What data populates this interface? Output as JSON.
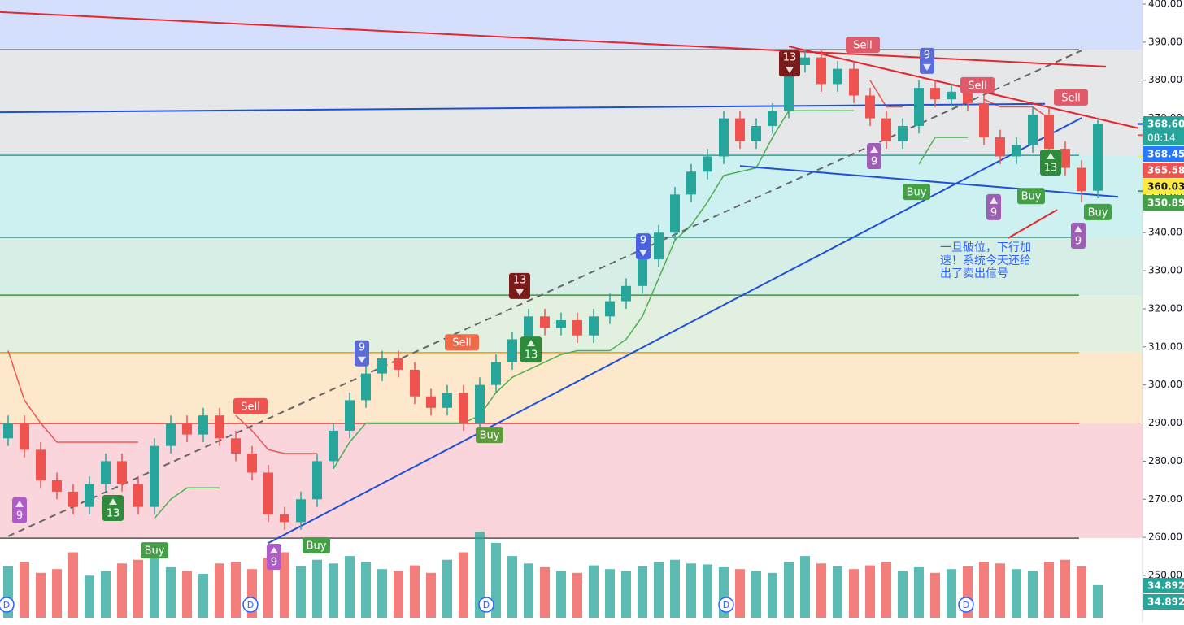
{
  "chart_data": {
    "type": "candlestick",
    "ylim": [
      237.84,
      401.07
    ],
    "yticks": [
      {
        "value": 250,
        "label": "250.00"
      },
      {
        "value": 260,
        "label": "260.00"
      },
      {
        "value": 270,
        "label": "270.00"
      },
      {
        "value": 280,
        "label": "280.00"
      },
      {
        "value": 290,
        "label": "290.00"
      },
      {
        "value": 300,
        "label": "300.00"
      },
      {
        "value": 310,
        "label": "310.00"
      },
      {
        "value": 320,
        "label": "320.00"
      },
      {
        "value": 330,
        "label": "330.00"
      },
      {
        "value": 340,
        "label": "340.00"
      },
      {
        "value": 350,
        "label": "350.00"
      },
      {
        "value": 360,
        "label": "360.00"
      },
      {
        "value": 370,
        "label": "370.00"
      },
      {
        "value": 380,
        "label": "380.00"
      },
      {
        "value": 390,
        "label": "390.00"
      },
      {
        "value": 400,
        "label": "400.00"
      }
    ],
    "up_color": "#26a69a",
    "down_color": "#ef5350",
    "open": [
      286,
      290,
      283,
      275,
      272,
      268,
      274,
      280,
      274,
      268,
      284,
      290,
      287,
      292,
      286,
      282,
      277,
      266,
      264,
      270,
      280,
      288,
      296,
      303,
      307,
      304,
      297,
      294,
      298,
      290,
      300,
      306,
      312,
      318,
      315,
      317,
      313,
      318,
      322,
      326,
      333,
      340,
      350,
      356,
      360,
      370,
      364,
      368,
      372,
      384,
      386,
      379,
      383,
      376,
      370,
      364,
      368,
      378,
      375,
      377,
      374,
      365,
      360,
      363,
      371,
      362,
      357,
      351
    ],
    "high": [
      292,
      292,
      285,
      277,
      274,
      276,
      282,
      282,
      276,
      286,
      292,
      292,
      294,
      294,
      288,
      284,
      279,
      268,
      272,
      282,
      290,
      298,
      305,
      309,
      309,
      306,
      299,
      300,
      300,
      302,
      308,
      314,
      320,
      320,
      319,
      319,
      320,
      324,
      328,
      335,
      342,
      352,
      358,
      362,
      372,
      372,
      370,
      374,
      386,
      388,
      388,
      385,
      385,
      378,
      372,
      370,
      380,
      380,
      379,
      379,
      376,
      367,
      365,
      373,
      373,
      364,
      359,
      370
    ],
    "low": [
      284,
      281,
      273,
      270,
      266,
      266,
      272,
      272,
      266,
      266,
      282,
      285,
      285,
      284,
      280,
      275,
      264,
      262,
      262,
      268,
      278,
      286,
      294,
      301,
      302,
      295,
      292,
      292,
      288,
      288,
      298,
      304,
      310,
      313,
      313,
      311,
      311,
      316,
      320,
      324,
      331,
      338,
      348,
      354,
      358,
      362,
      362,
      366,
      370,
      382,
      377,
      377,
      374,
      368,
      362,
      362,
      366,
      373,
      373,
      372,
      363,
      358,
      358,
      361,
      360,
      355,
      348,
      349
    ],
    "close": [
      290,
      283,
      275,
      272,
      268,
      274,
      280,
      274,
      268,
      284,
      290,
      287,
      292,
      286,
      282,
      277,
      266,
      264,
      270,
      280,
      288,
      296,
      303,
      307,
      304,
      297,
      294,
      298,
      290,
      300,
      306,
      312,
      318,
      315,
      317,
      313,
      318,
      322,
      326,
      333,
      340,
      350,
      356,
      360,
      370,
      364,
      368,
      372,
      384,
      386,
      379,
      383,
      376,
      370,
      364,
      368,
      378,
      375,
      377,
      374,
      365,
      360,
      363,
      371,
      362,
      357,
      350.89,
      368.6
    ],
    "volume": [
      55,
      60,
      48,
      52,
      70,
      45,
      50,
      58,
      62,
      66,
      54,
      50,
      47,
      58,
      60,
      52,
      64,
      70,
      55,
      62,
      58,
      66,
      60,
      52,
      50,
      56,
      48,
      62,
      70,
      92,
      80,
      66,
      58,
      54,
      50,
      48,
      56,
      52,
      50,
      55,
      60,
      62,
      58,
      57,
      54,
      52,
      50,
      48,
      60,
      66,
      58,
      55,
      52,
      56,
      60,
      50,
      54,
      48,
      52,
      55,
      60,
      58,
      52,
      50,
      60,
      62,
      55,
      34.892
    ],
    "volume_lim": [
      0,
      100
    ],
    "zones": [
      {
        "from": 388,
        "to": 401.07,
        "color": "#cfdcfb"
      },
      {
        "from": 360.3,
        "to": 388,
        "color": "#e3e4e6"
      },
      {
        "from": 338.8,
        "to": 360.3,
        "color": "#c8eef0"
      },
      {
        "from": 323.6,
        "to": 338.8,
        "color": "#d3ece3"
      },
      {
        "from": 308.5,
        "to": 323.6,
        "color": "#dff0dc"
      },
      {
        "from": 289.9,
        "to": 308.5,
        "color": "#fde6c6"
      },
      {
        "from": 259.8,
        "to": 289.9,
        "color": "#f9d2d8"
      }
    ],
    "levels": [
      {
        "value": 388,
        "color": "#555555"
      },
      {
        "value": 360.3,
        "color": "#26a69a"
      },
      {
        "value": 338.8,
        "color": "#1b7f6e"
      },
      {
        "value": 323.6,
        "color": "#2e9a3a"
      },
      {
        "value": 308.5,
        "color": "#f0960a"
      },
      {
        "value": 289.9,
        "color": "#e53935"
      },
      {
        "value": 259.8,
        "color": "#555555"
      }
    ],
    "trail_upper": {
      "color": "#ef5350",
      "values": [
        309,
        296,
        290,
        285,
        285,
        285,
        285,
        285,
        285,
        null,
        null,
        null,
        null,
        null,
        292,
        288,
        283,
        282,
        282,
        282,
        null,
        null,
        null,
        null,
        null,
        null,
        null,
        null,
        null,
        null,
        null,
        null,
        null,
        null,
        null,
        null,
        null,
        null,
        null,
        null,
        null,
        null,
        null,
        null,
        null,
        null,
        null,
        null,
        null,
        null,
        null,
        null,
        null,
        380,
        373,
        373,
        null,
        null,
        null,
        null,
        375,
        373,
        373,
        373,
        370,
        null,
        365,
        null
      ]
    },
    "trail_lower": {
      "color": "#4caf50",
      "values": [
        null,
        null,
        null,
        null,
        null,
        null,
        null,
        null,
        null,
        265,
        270,
        273,
        273,
        273,
        null,
        null,
        null,
        null,
        null,
        null,
        278,
        285,
        290,
        290,
        290,
        290,
        290,
        290,
        290,
        292,
        298,
        302,
        304,
        306,
        308,
        309,
        309,
        309,
        312,
        318,
        328,
        338,
        342,
        348,
        355,
        356,
        357,
        365,
        372,
        372,
        372,
        372,
        372,
        null,
        null,
        null,
        358,
        365,
        365,
        365,
        null,
        null,
        null,
        null,
        null,
        363,
        null,
        352
      ]
    },
    "lines": [
      {
        "color": "#e5262f",
        "dash": false,
        "x": [
          -0.5,
          67.5
        ],
        "y": [
          397.9,
          383.6
        ]
      },
      {
        "color": "#1e4fd8",
        "dash": false,
        "x": [
          -0.5,
          63.75
        ],
        "y": [
          371.6,
          373.8
        ]
      },
      {
        "color": "#666666",
        "dash": true,
        "x": [
          0,
          66
        ],
        "y": [
          260.3,
          387.8
        ]
      },
      {
        "color": "#1e4fd8",
        "dash": false,
        "x": [
          16,
          66
        ],
        "y": [
          258.5,
          370.1
        ]
      },
      {
        "color": "#e5262f",
        "dash": false,
        "x": [
          48,
          69.5
        ],
        "y": [
          388.9,
          367.4
        ]
      },
      {
        "color": "#1e4fd8",
        "dash": false,
        "x": [
          45,
          68.25
        ],
        "y": [
          357.5,
          349.4
        ]
      },
      {
        "color": "#e5262f",
        "dash": false,
        "x": [
          61.5,
          64.5
        ],
        "y": [
          338.6,
          346
        ]
      }
    ],
    "signals": [
      {
        "text": "9",
        "x": 0.7,
        "y": 267.1,
        "color": "#b05cc8",
        "dir": "up"
      },
      {
        "text": "13",
        "x": 6.45,
        "y": 267.7,
        "color": "#2e8b3a",
        "dir": "up"
      },
      {
        "text": "Buy",
        "x": 9,
        "y": 256.6,
        "color": "#43a047",
        "dir": "none"
      },
      {
        "text": "9",
        "x": 16.35,
        "y": 254.9,
        "color": "#b05cc8",
        "dir": "up"
      },
      {
        "text": "Buy",
        "x": 18.95,
        "y": 257.9,
        "color": "#43a047",
        "dir": "none"
      },
      {
        "text": "Sell",
        "x": 14.9,
        "y": 294.4,
        "color": "#ef5350",
        "dir": "none"
      },
      {
        "text": "9",
        "x": 21.75,
        "y": 308.3,
        "color": "#5b6bd8",
        "dir": "down"
      },
      {
        "text": "Sell",
        "x": 27.9,
        "y": 311.2,
        "color": "#f06a4a",
        "dir": "none"
      },
      {
        "text": "Buy",
        "x": 29.6,
        "y": 286.9,
        "color": "#5d9b3a",
        "dir": "none"
      },
      {
        "text": "13",
        "x": 31.45,
        "y": 326.0,
        "color": "#7a1a1a",
        "dir": "down"
      },
      {
        "text": "13",
        "x": 32.15,
        "y": 309.3,
        "color": "#2e8b3a",
        "dir": "up"
      },
      {
        "text": "9",
        "x": 39.05,
        "y": 336.4,
        "color": "#4a62e0",
        "dir": "down"
      },
      {
        "text": "13",
        "x": 48.05,
        "y": 384.4,
        "color": "#7a1a1a",
        "dir": "down"
      },
      {
        "text": "Sell",
        "x": 52.55,
        "y": 389.3,
        "color": "#e05a6a",
        "dir": "none"
      },
      {
        "text": "9",
        "x": 56.5,
        "y": 385.1,
        "color": "#5b6bd8",
        "dir": "down"
      },
      {
        "text": "9",
        "x": 53.25,
        "y": 360.1,
        "color": "#9c5fb5",
        "dir": "up"
      },
      {
        "text": "Sell",
        "x": 59.6,
        "y": 378.7,
        "color": "#e05a6a",
        "dir": "none"
      },
      {
        "text": "Buy",
        "x": 55.85,
        "y": 350.7,
        "color": "#43a047",
        "dir": "none"
      },
      {
        "text": "9",
        "x": 60.6,
        "y": 346.7,
        "color": "#9c5fb5",
        "dir": "up"
      },
      {
        "text": "Buy",
        "x": 62.9,
        "y": 349.6,
        "color": "#43a047",
        "dir": "none"
      },
      {
        "text": "13",
        "x": 64.1,
        "y": 358.4,
        "color": "#2e8b3a",
        "dir": "up"
      },
      {
        "text": "Sell",
        "x": 65.35,
        "y": 375.5,
        "color": "#e05a6a",
        "dir": "none"
      },
      {
        "text": "9",
        "x": 65.8,
        "y": 339.2,
        "color": "#9c5fb5",
        "dir": "up"
      },
      {
        "text": "Buy",
        "x": 67,
        "y": 345.4,
        "color": "#43a047",
        "dir": "none"
      }
    ],
    "annotation": {
      "lines": [
        "一旦破位，下行加",
        "速！系统今天还给",
        "出了卖出信号"
      ],
      "x": 57.3,
      "y": 336.0,
      "color": "#2962ff"
    },
    "session_marks": {
      "label": "D",
      "x": [
        -0.1,
        14.9,
        29.4,
        44.15,
        58.9
      ]
    },
    "price_tags": [
      {
        "value": 368.6,
        "label": "368.60",
        "color": "#26a69a",
        "text_color": "#ffffff"
      },
      {
        "value": 368.45,
        "label": "368.45",
        "color": "#2979ff",
        "text_color": "#ffffff"
      },
      {
        "value": 365.58,
        "label": "365.58",
        "color": "#ef5350",
        "text_color": "#ffffff"
      },
      {
        "value": 360.03,
        "label": "360.03",
        "color": "#ffeb3b",
        "text_color": "#131722"
      },
      {
        "value": 350.89,
        "label": "350.89",
        "color": "#43a047",
        "text_color": "#ffffff"
      }
    ],
    "countdown": "08:14",
    "volume_tags": [
      {
        "value": 34.892,
        "label": "34.892",
        "color": "#26a69a"
      },
      {
        "value": 34.892,
        "label": "34.892",
        "color": "#26a69a"
      }
    ]
  }
}
